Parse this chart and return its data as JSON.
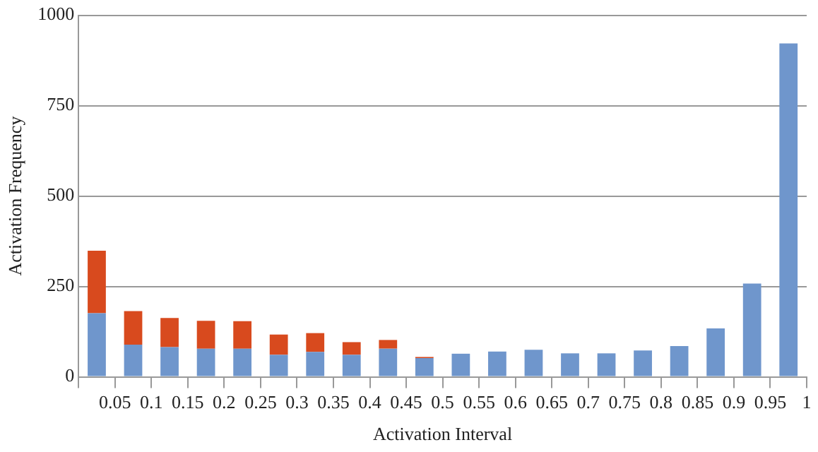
{
  "chart_data": {
    "type": "bar",
    "xlabel": "Activation Interval",
    "ylabel": "Activation Frequency",
    "stacked": true,
    "x": [
      0.025,
      0.075,
      0.125,
      0.175,
      0.225,
      0.275,
      0.325,
      0.375,
      0.425,
      0.475,
      0.525,
      0.575,
      0.625,
      0.675,
      0.725,
      0.775,
      0.825,
      0.875,
      0.925,
      0.975
    ],
    "series": [
      {
        "color": "#6f96cc",
        "values": [
          176,
          89,
          82,
          78,
          78,
          61,
          69,
          61,
          78,
          52,
          64,
          70,
          75,
          65,
          65,
          73,
          85,
          134,
          258,
          922
        ]
      },
      {
        "color": "#d84a1e",
        "values": [
          173,
          93,
          81,
          77,
          76,
          56,
          52,
          35,
          24,
          3,
          0,
          0,
          0,
          0,
          0,
          0,
          0,
          0,
          0,
          0
        ]
      }
    ],
    "xlim": [
      0,
      1
    ],
    "xticks": [
      {
        "value": 0,
        "label": null
      },
      0.05,
      0.1,
      0.15,
      0.2,
      0.25,
      0.3,
      0.35,
      0.4,
      0.45,
      0.5,
      0.55,
      0.6,
      0.65,
      0.7,
      0.75,
      0.8,
      0.85,
      0.9,
      0.95,
      1
    ],
    "ylim": [
      0,
      1000
    ],
    "yticks": [
      0,
      250,
      500,
      750,
      1000
    ],
    "grid": "y"
  }
}
